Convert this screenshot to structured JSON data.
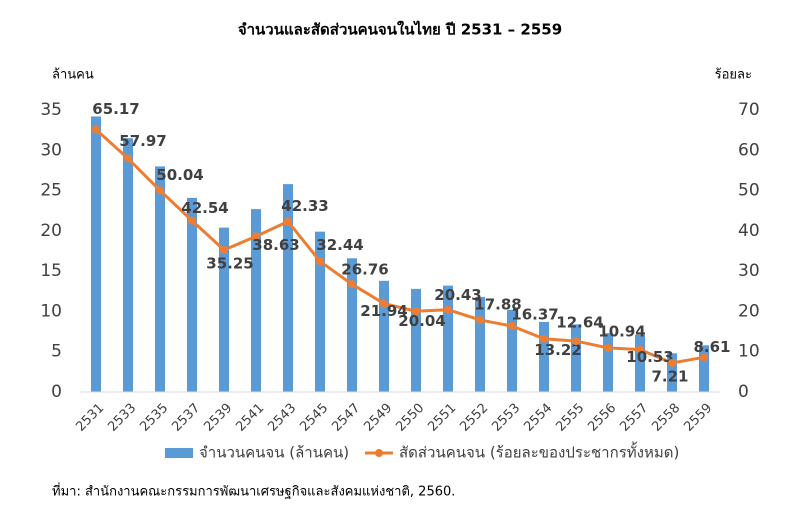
{
  "chart_data": {
    "type": "bar-line",
    "title": "จำนวนและสัดส่วนคนจนในไทย ปี 2531 – 2559",
    "y_label": "ล้านคน",
    "y2_label": "ร้อยละ",
    "source": "ที่มา: สำนักงานคณะกรรมการพัฒนาเศรษฐกิจและสังคมแห่งชาติ, 2560.",
    "categories": [
      "2531",
      "2533",
      "2535",
      "2537",
      "2539",
      "2541",
      "2543",
      "2545",
      "2547",
      "2549",
      "2550",
      "2551",
      "2552",
      "2553",
      "2554",
      "2555",
      "2556",
      "2557",
      "2558",
      "2559"
    ],
    "series": [
      {
        "name": "จำนวนคนจน (ล้านคน)",
        "type": "bar",
        "color": "#5b9bd5",
        "axis": "y",
        "values": [
          34.2,
          31.5,
          28.0,
          24.1,
          20.4,
          22.7,
          25.8,
          19.9,
          16.6,
          13.8,
          12.8,
          13.2,
          11.8,
          10.2,
          8.7,
          8.4,
          7.3,
          7.1,
          4.8,
          5.8
        ]
      },
      {
        "name": "สัดส่วนคนจน (ร้อยละของประชากรทั้งหมด)",
        "type": "line",
        "color": "#ed7d31",
        "axis": "y2",
        "values": [
          65.17,
          57.97,
          50.04,
          42.54,
          35.25,
          38.63,
          42.33,
          32.44,
          26.76,
          21.94,
          20.04,
          20.43,
          17.88,
          16.37,
          13.22,
          12.64,
          10.94,
          10.53,
          7.21,
          8.61
        ]
      }
    ],
    "ylim": [
      0,
      35
    ],
    "yticks": [
      0,
      5,
      10,
      15,
      20,
      25,
      30,
      35
    ],
    "y2lim": [
      0,
      70
    ],
    "y2ticks": [
      0,
      10,
      20,
      30,
      40,
      50,
      60,
      70
    ],
    "legend": "bottom"
  }
}
